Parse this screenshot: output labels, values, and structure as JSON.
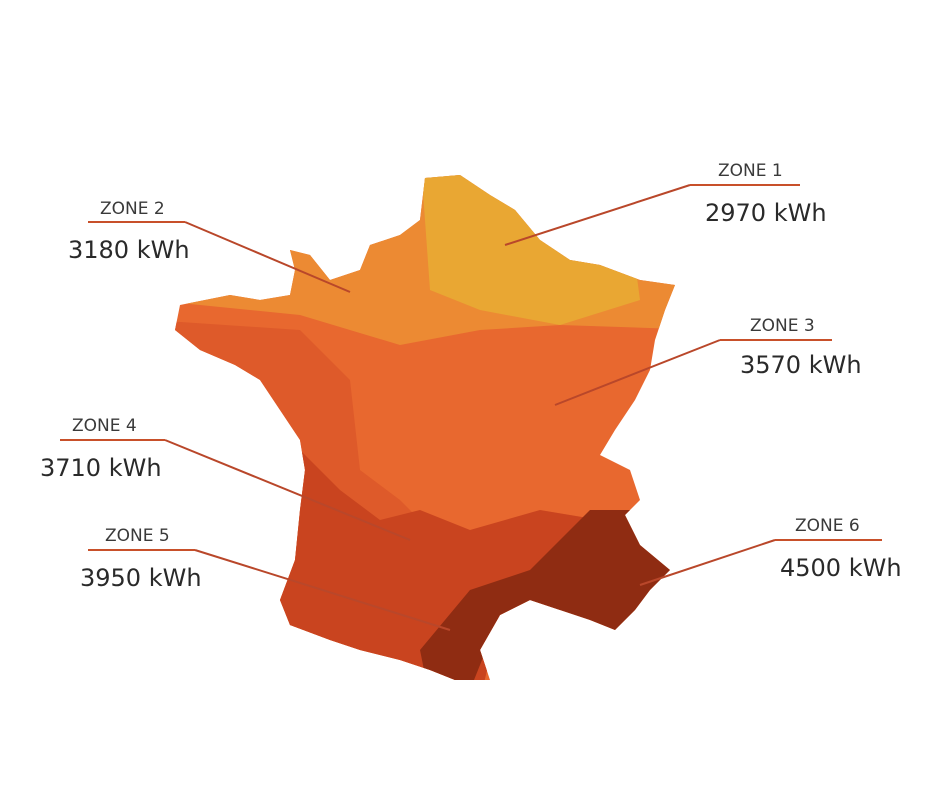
{
  "zones": [
    {
      "label": "ZONE 1",
      "value": "2970 kWh"
    },
    {
      "label": "ZONE 2",
      "value": "3180 kWh"
    },
    {
      "label": "ZONE 3",
      "value": "3570 kWh"
    },
    {
      "label": "ZONE 4",
      "value": "3710 kWh"
    },
    {
      "label": "ZONE 5",
      "value": "3950 kWh"
    },
    {
      "label": "ZONE 6",
      "value": "4500 kWh"
    }
  ]
}
